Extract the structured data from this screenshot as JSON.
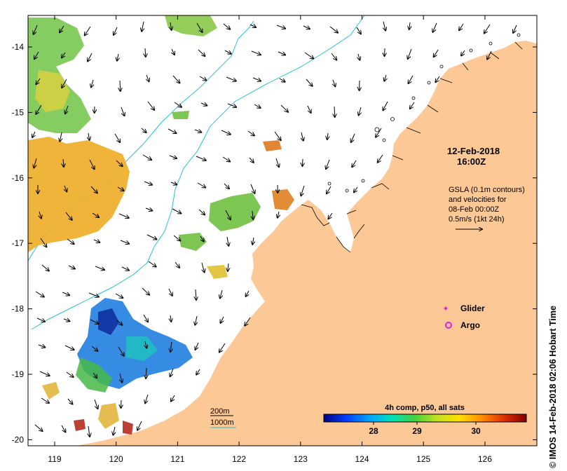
{
  "map": {
    "x_ticks": [
      "119",
      "120",
      "121",
      "122",
      "123",
      "124",
      "125",
      "126"
    ],
    "y_ticks": [
      "-14",
      "-15",
      "-16",
      "-17",
      "-18",
      "-19",
      "-20"
    ],
    "land_color": "#fcc896",
    "ocean_color": "#ffffff",
    "contour_color": "#22c4d8"
  },
  "annotation": {
    "date": "12-Feb-2018",
    "time": "16:00Z",
    "gsla_lines": [
      "GSLA (0.1m contours)",
      "and velocities for",
      "08-Feb 00:00Z",
      "0.5m/s (1kt 24h)"
    ]
  },
  "legend": {
    "glider_label": "Glider",
    "argo_label": "Argo",
    "glider_color": "#e020e0",
    "argo_color": "#e020e0"
  },
  "depth_legend": {
    "line1": "200m",
    "line2": "1000m"
  },
  "colorbar": {
    "title": "4h comp, p50, all sats",
    "ticks": [
      "28",
      "29",
      "30"
    ],
    "colors": [
      "#000080",
      "#0040ff",
      "#00a0ff",
      "#00e0c0",
      "#40d040",
      "#c0e020",
      "#ffe000",
      "#ff9000",
      "#e03000",
      "#800000"
    ]
  },
  "stamp": {
    "text": "© IMOS 14-Feb-2018 02:06 Hobart Time"
  }
}
